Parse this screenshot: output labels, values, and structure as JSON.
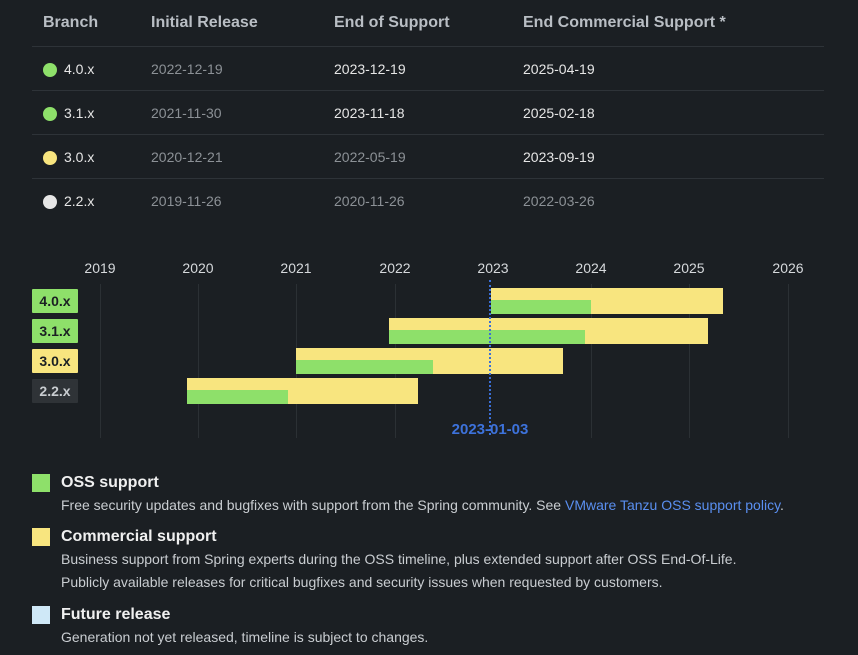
{
  "table": {
    "headers": {
      "branch": "Branch",
      "initial_release": "Initial Release",
      "end_of_support": "End of Support",
      "end_commercial": "End Commercial Support *"
    },
    "rows": [
      {
        "branch": "4.0.x",
        "status_color": "#8ee06a",
        "initial": "2022-12-19",
        "eos": "2023-12-19",
        "eocs": "2025-04-19"
      },
      {
        "branch": "3.1.x",
        "status_color": "#8ee06a",
        "initial": "2021-11-30",
        "eos": "2023-11-18",
        "eocs": "2025-02-18"
      },
      {
        "branch": "3.0.x",
        "status_color": "#f8e57f",
        "initial": "2020-12-21",
        "eos": "2022-05-19",
        "eocs": "2023-09-19"
      },
      {
        "branch": "2.2.x",
        "status_color": "#e6e6e6",
        "initial": "2019-11-26",
        "eos": "2020-11-26",
        "eocs": "2022-03-26"
      }
    ]
  },
  "timeline": {
    "years": [
      "2019",
      "2020",
      "2021",
      "2022",
      "2023",
      "2024",
      "2025",
      "2026"
    ],
    "today_label": "2023-01-03",
    "colors": {
      "oss": "#8ee06a",
      "commercial": "#f8e57f",
      "future": "#cfe8f7"
    },
    "branches": [
      {
        "label": "4.0.x",
        "tag_bg": "#8ee06a",
        "tag_fg": "#1b1f23"
      },
      {
        "label": "3.1.x",
        "tag_bg": "#8ee06a",
        "tag_fg": "#1b1f23"
      },
      {
        "label": "3.0.x",
        "tag_bg": "#f8e57f",
        "tag_fg": "#1b1f23"
      },
      {
        "label": "2.2.x",
        "tag_bg": "#2f3337",
        "tag_fg": "#c9cdd1"
      }
    ]
  },
  "legend": {
    "oss": {
      "title": "OSS support",
      "desc_prefix": "Free security updates and bugfixes with support from the Spring community. See ",
      "link": "VMware Tanzu OSS support policy",
      "desc_suffix": "."
    },
    "commercial": {
      "title": "Commercial support",
      "desc1": "Business support from Spring experts during the OSS timeline, plus extended support after OSS End-Of-Life.",
      "desc2": "Publicly available releases for critical bugfixes and security issues when requested by customers."
    },
    "future": {
      "title": "Future release",
      "desc": "Generation not yet released, timeline is subject to changes."
    }
  }
}
